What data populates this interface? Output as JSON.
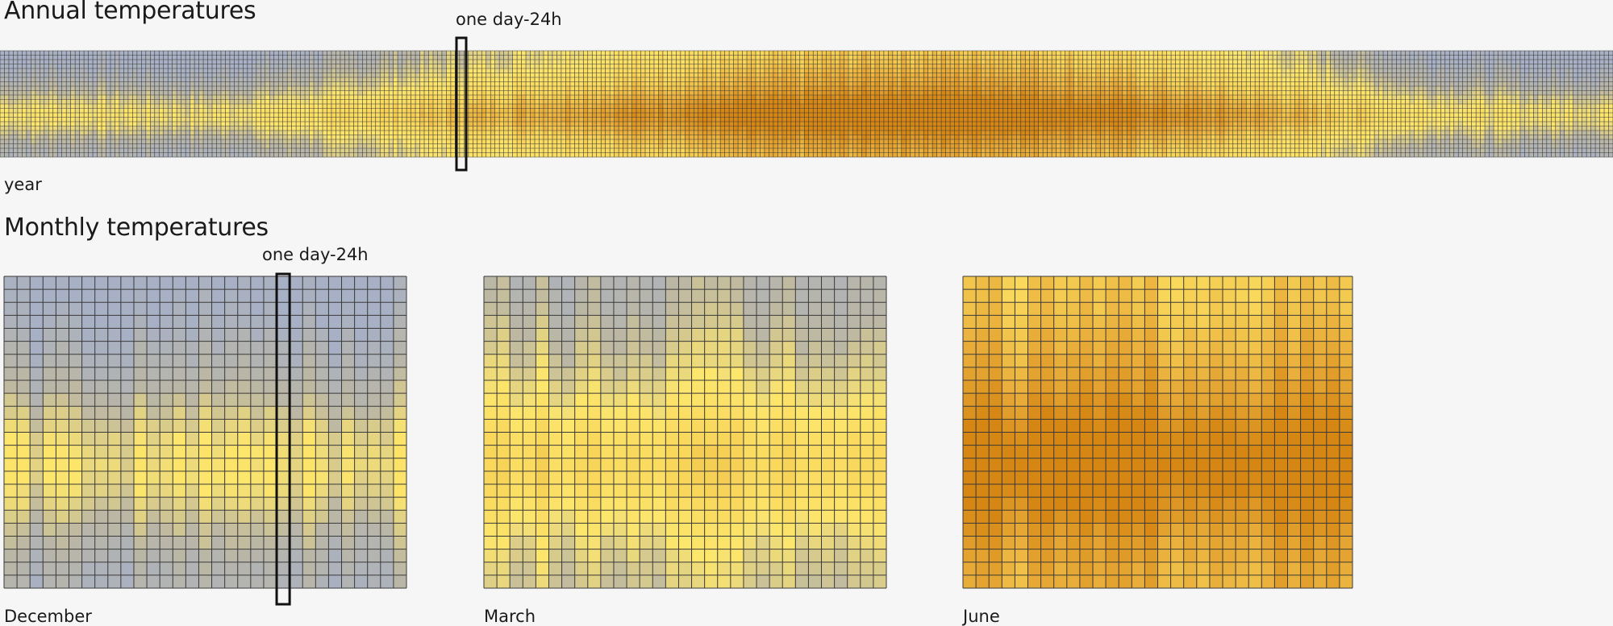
{
  "annual": {
    "title": "Annual temperatures",
    "marker_label": "one day-24h",
    "axis_label": "year"
  },
  "monthly": {
    "title": "Monthly temperatures",
    "marker_label": "one day-24h"
  },
  "palette": {
    "cool_grey_blue": "#a7b0c4",
    "grey": "#bcb7a4",
    "pale_yellow": "#fde66c",
    "yellow": "#f8d65a",
    "orange": "#e8ab38",
    "dark_orange": "#d68612",
    "grid_line": "#3a3a3a"
  },
  "chart_data": [
    {
      "type": "heatmap",
      "title": "Annual temperatures",
      "xlabel": "year",
      "ylabel": "",
      "x": "days of year (365)",
      "y": "hours of day (24)",
      "annotation": "one day-24h",
      "annotation_day": 104,
      "color_scale": [
        "cool_grey_blue",
        "grey",
        "pale_yellow",
        "yellow",
        "orange",
        "dark_orange"
      ],
      "seasonal_level_by_month": [
        0.15,
        0.1,
        0.25,
        0.45,
        0.6,
        0.75,
        0.85,
        0.85,
        0.7,
        0.5,
        0.2,
        0.12
      ]
    },
    {
      "type": "heatmap",
      "title": "December",
      "xlabel": "December",
      "days": 31,
      "hours": 24,
      "level": 0.12,
      "annotation": "one day-24h",
      "annotation_day": 21
    },
    {
      "type": "heatmap",
      "title": "March",
      "xlabel": "March",
      "days": 31,
      "hours": 24,
      "level": 0.3
    },
    {
      "type": "heatmap",
      "title": "June",
      "xlabel": "June",
      "days": 30,
      "hours": 24,
      "level": 0.8
    }
  ]
}
